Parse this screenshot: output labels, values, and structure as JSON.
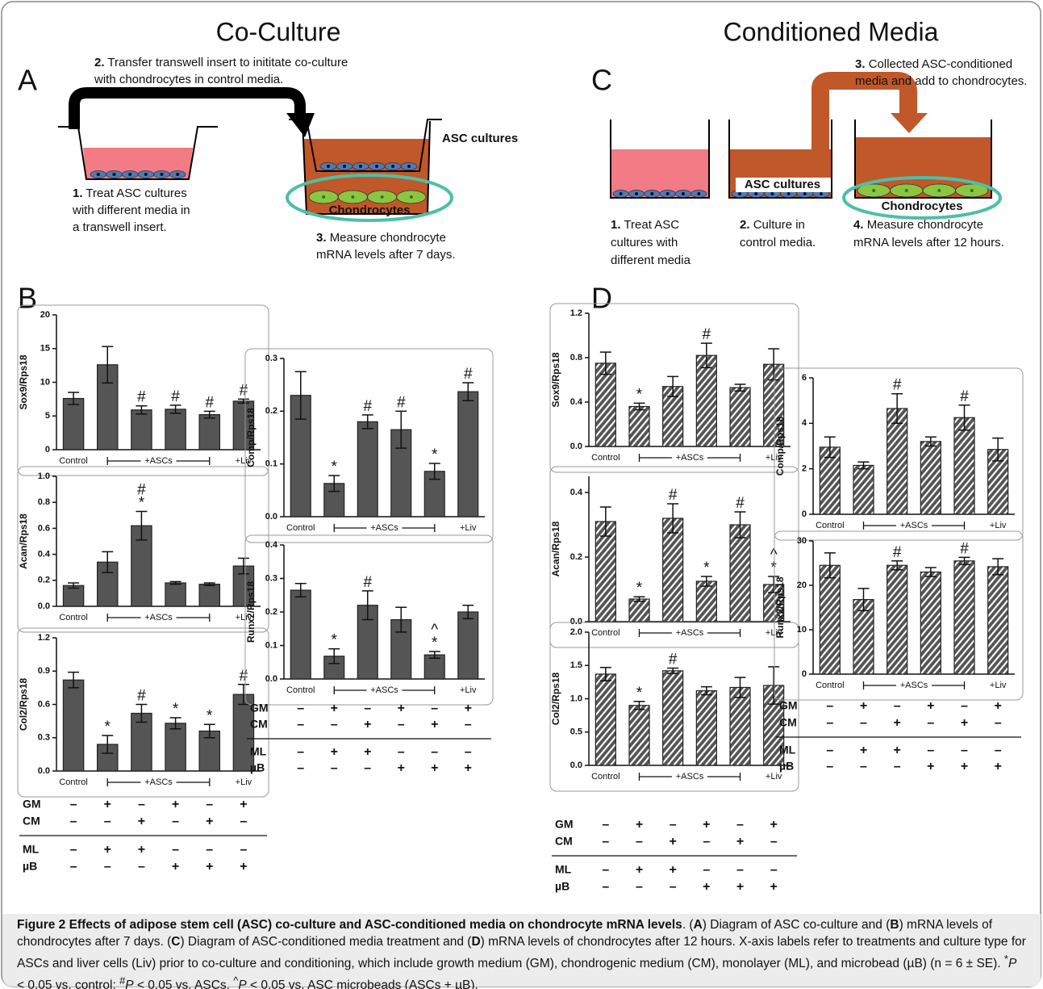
{
  "figure": {
    "co_culture_title": "Co-Culture",
    "conditioned_media_title": "Conditioned Media",
    "panel_letters": {
      "a": "A",
      "b": "B",
      "c": "C",
      "d": "D"
    }
  },
  "diagram_a": {
    "step1": {
      "number": "1.",
      "lines": [
        "Treat ASC cultures",
        "with different media in",
        "a transwell insert."
      ]
    },
    "step2": {
      "number": "2.",
      "lines": [
        "Transfer transwell insert to inititate co-culture",
        "with chondrocytes in control media."
      ]
    },
    "step3": {
      "number": "3.",
      "lines": [
        "Measure chondrocyte",
        "mRNA levels after 7 days."
      ]
    },
    "asc_label": "ASC cultures",
    "chondrocyte_label": "Chondrocytes"
  },
  "diagram_c": {
    "step1": {
      "number": "1.",
      "lines": [
        "Treat ASC",
        "cultures with",
        "different media"
      ]
    },
    "step2": {
      "number": "2.",
      "lines": [
        "Culture in",
        "control media."
      ]
    },
    "step3": {
      "number": "3.",
      "lines": [
        "Collected ASC-conditioned",
        "media and add to chondrocytes."
      ]
    },
    "step4": {
      "number": "4.",
      "lines": [
        "Measure chondrocyte",
        "mRNA levels after 12 hours."
      ]
    },
    "asc_label": "ASC cultures",
    "chondrocyte_label": "Chondrocytes"
  },
  "chart_data": [
    {
      "type": "bar",
      "ylabel": "Sox9/Rps18",
      "categories": [
        "Control",
        null,
        null,
        null,
        null,
        "+Liv"
      ],
      "group_label": "+ASCs",
      "values": [
        7.6,
        12.6,
        5.9,
        6.0,
        5.2,
        7.2
      ],
      "errors": [
        0.9,
        2.7,
        0.6,
        0.6,
        0.5,
        0.3
      ],
      "annotations": [
        null,
        null,
        [
          "#"
        ],
        [
          "#"
        ],
        [
          "#"
        ],
        [
          "#"
        ]
      ],
      "ylim": [
        0,
        20
      ],
      "yticks": [
        0,
        5,
        10,
        15,
        20
      ],
      "color": "#555555",
      "hatch": false
    },
    {
      "type": "bar",
      "ylabel": "Acan/Rps18",
      "categories": [
        "Control",
        null,
        null,
        null,
        null,
        "+Liv"
      ],
      "group_label": "+ASCs",
      "values": [
        0.16,
        0.34,
        0.62,
        0.18,
        0.17,
        0.31
      ],
      "errors": [
        0.02,
        0.08,
        0.11,
        0.01,
        0.01,
        0.06
      ],
      "annotations": [
        null,
        null,
        [
          "#",
          "*"
        ],
        null,
        null,
        null
      ],
      "ylim": [
        0,
        1
      ],
      "yticks": [
        {
          "value": 0,
          "label": "0.0"
        },
        0.2,
        0.4,
        0.6,
        0.8,
        {
          "value": 1,
          "label": "1.0"
        }
      ],
      "color": "#555555",
      "hatch": false
    },
    {
      "type": "bar",
      "ylabel": "Col2/Rps18",
      "categories": [
        "Control",
        null,
        null,
        null,
        null,
        "+Liv"
      ],
      "group_label": "+ASCs",
      "values": [
        0.82,
        0.24,
        0.52,
        0.43,
        0.36,
        0.69
      ],
      "errors": [
        0.07,
        0.08,
        0.08,
        0.05,
        0.06,
        0.09
      ],
      "annotations": [
        null,
        [
          "*"
        ],
        [
          "#"
        ],
        [
          "*"
        ],
        [
          "*"
        ],
        [
          "#"
        ]
      ],
      "ylim": [
        0,
        1.2
      ],
      "yticks": [
        {
          "value": 0,
          "label": "0.0"
        },
        0.3,
        0.6,
        0.9,
        1.2
      ],
      "color": "#555555",
      "hatch": false
    },
    {
      "type": "bar",
      "ylabel": "Comp/Rps18",
      "categories": [
        "Control",
        null,
        null,
        null,
        null,
        "+Liv"
      ],
      "group_label": "+ASCs",
      "values": [
        0.23,
        0.063,
        0.18,
        0.165,
        0.086,
        0.237
      ],
      "errors": [
        0.045,
        0.015,
        0.013,
        0.035,
        0.015,
        0.017
      ],
      "annotations": [
        null,
        [
          "*"
        ],
        [
          "#"
        ],
        [
          "#"
        ],
        [
          "*"
        ],
        [
          "#"
        ]
      ],
      "ylim": [
        0,
        0.3
      ],
      "yticks": [
        {
          "value": 0,
          "label": "0.0"
        },
        0.1,
        0.2,
        0.3
      ],
      "color": "#555555",
      "hatch": false
    },
    {
      "type": "bar",
      "ylabel": "Runx2/Rps18",
      "categories": [
        "Control",
        null,
        null,
        null,
        null,
        "+Liv"
      ],
      "group_label": "+ASCs",
      "values": [
        0.265,
        0.068,
        0.22,
        0.177,
        0.072,
        0.2
      ],
      "errors": [
        0.02,
        0.022,
        0.043,
        0.037,
        0.01,
        0.02
      ],
      "annotations": [
        null,
        [
          "*"
        ],
        [
          "#"
        ],
        null,
        [
          "^",
          "*"
        ],
        null
      ],
      "ylim": [
        0,
        0.4
      ],
      "yticks": [
        {
          "value": 0,
          "label": "0.0"
        },
        0.1,
        0.2,
        0.3,
        0.4
      ],
      "color": "#555555",
      "hatch": false
    },
    {
      "type": "bar",
      "ylabel": "Sox9/Rps18",
      "categories": [
        "Control",
        null,
        null,
        null,
        null,
        "+Liv"
      ],
      "group_label": "+ASCs",
      "values": [
        0.75,
        0.36,
        0.54,
        0.82,
        0.53,
        0.74
      ],
      "errors": [
        0.1,
        0.03,
        0.09,
        0.11,
        0.03,
        0.14
      ],
      "annotations": [
        null,
        [
          "*"
        ],
        null,
        [
          "#"
        ],
        null,
        null
      ],
      "ylim": [
        0,
        1.2
      ],
      "yticks": [
        {
          "value": 0,
          "label": "0.0"
        },
        0.4,
        0.8,
        1.2
      ],
      "color": "#555555",
      "hatch": true
    },
    {
      "type": "bar",
      "ylabel": "Acan/Rps18",
      "categories": [
        "Control",
        null,
        null,
        null,
        null,
        "+Liv"
      ],
      "group_label": "+ASCs",
      "values": [
        0.31,
        0.07,
        0.32,
        0.125,
        0.3,
        0.115
      ],
      "errors": [
        0.045,
        0.007,
        0.045,
        0.015,
        0.04,
        0.025
      ],
      "annotations": [
        null,
        [
          "*"
        ],
        [
          "#"
        ],
        [
          "*"
        ],
        [
          "#"
        ],
        [
          "^",
          "*"
        ]
      ],
      "ylim": [
        0,
        0.45
      ],
      "yticks": [
        {
          "value": 0,
          "label": "0.0"
        },
        0.2,
        0.4
      ],
      "color": "#555555",
      "hatch": true
    },
    {
      "type": "bar",
      "ylabel": "Col2/Rps18",
      "categories": [
        "Control",
        null,
        null,
        null,
        null,
        "+Liv"
      ],
      "group_label": "+ASCs",
      "values": [
        1.37,
        0.9,
        1.42,
        1.12,
        1.17,
        1.2
      ],
      "errors": [
        0.1,
        0.06,
        0.04,
        0.06,
        0.15,
        0.28
      ],
      "annotations": [
        null,
        [
          "*"
        ],
        [
          "#"
        ],
        null,
        null,
        null
      ],
      "ylim": [
        0,
        2
      ],
      "yticks": [
        {
          "value": 0,
          "label": "0.0"
        },
        0.5,
        {
          "value": 1,
          "label": "1.0"
        },
        1.5,
        {
          "value": 2,
          "label": "2.0"
        }
      ],
      "color": "#555555",
      "hatch": true
    },
    {
      "type": "bar",
      "ylabel": "Comp/Rps18",
      "categories": [
        "Control",
        null,
        null,
        null,
        null,
        "+Liv"
      ],
      "group_label": "+ASCs",
      "values": [
        2.95,
        2.15,
        4.65,
        3.2,
        4.25,
        2.85
      ],
      "errors": [
        0.45,
        0.15,
        0.65,
        0.2,
        0.55,
        0.5
      ],
      "annotations": [
        null,
        null,
        [
          "#"
        ],
        null,
        [
          "#"
        ],
        null
      ],
      "ylim": [
        0,
        6
      ],
      "yticks": [
        0,
        2,
        4,
        6
      ],
      "color": "#555555",
      "hatch": true
    },
    {
      "type": "bar",
      "ylabel": "Runx2/Rps18",
      "categories": [
        "Control",
        null,
        null,
        null,
        null,
        "+Liv"
      ],
      "group_label": "+ASCs",
      "values": [
        24.5,
        16.8,
        24.5,
        23,
        25.5,
        24.2
      ],
      "errors": [
        2.8,
        2.5,
        1.0,
        1.0,
        0.8,
        1.8
      ],
      "annotations": [
        null,
        null,
        [
          "#"
        ],
        null,
        [
          "#"
        ],
        null
      ],
      "ylim": [
        0,
        30
      ],
      "yticks": [
        0,
        10,
        20,
        30
      ],
      "color": "#555555",
      "hatch": true
    }
  ],
  "treatments": {
    "rows": [
      {
        "label": "GM",
        "signs": [
          "–",
          "+",
          "–",
          "+",
          "–",
          "+"
        ]
      },
      {
        "label": "CM",
        "signs": [
          "–",
          "–",
          "+",
          "–",
          "+",
          "–"
        ]
      },
      {
        "label": "ML",
        "signs": [
          "–",
          "+",
          "+",
          "–",
          "–",
          "–"
        ]
      },
      {
        "label": "µB",
        "signs": [
          "–",
          "–",
          "–",
          "+",
          "+",
          "+"
        ]
      }
    ]
  },
  "caption": [
    {
      "text": "Figure 2 Effects of adipose stem cell (ASC) co-culture and ASC-conditioned media on chondrocyte mRNA levels",
      "bold": true
    },
    {
      "text": ". ("
    },
    {
      "text": "A",
      "bold": true
    },
    {
      "text": ") Diagram of ASC co-culture and ("
    },
    {
      "text": "B",
      "bold": true
    },
    {
      "text": ") mRNA levels of chondrocytes after 7 days. ("
    },
    {
      "text": "C",
      "bold": true
    },
    {
      "text": ") Diagram of ASC-conditioned media treatment and ("
    },
    {
      "text": "D",
      "bold": true
    },
    {
      "text": ") mRNA levels of chondrocytes after 12 hours. X-axis labels refer to treatments and culture type for ASCs and liver cells (Liv) prior to co-culture and conditioning, which include growth medium (GM), chondrogenic medium (CM), monolayer (ML), and microbead (µB) (n = 6 ± SE). "
    },
    {
      "text": "*",
      "sup": true
    },
    {
      "text": "P",
      "italic": true
    },
    {
      "text": " < 0.05 vs. control; "
    },
    {
      "text": "#",
      "sup": true
    },
    {
      "text": "P",
      "italic": true
    },
    {
      "text": " < 0.05 vs. ASCs, "
    },
    {
      "text": "^",
      "sup": true
    },
    {
      "text": "P",
      "italic": true
    },
    {
      "text": " < 0.05 vs. ASC microbeads (ASCs + µB)."
    }
  ]
}
